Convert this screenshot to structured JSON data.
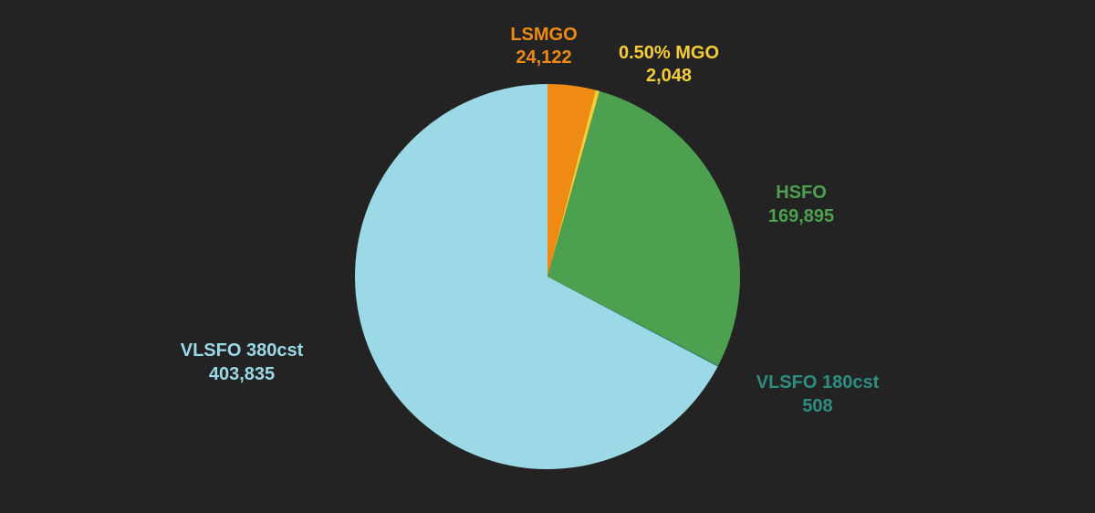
{
  "colors": {
    "background": "#232323"
  },
  "chart_data": {
    "type": "pie",
    "title": "",
    "start_angle_deg": 0,
    "direction": "clockwise",
    "slices": [
      {
        "label": "LSMGO",
        "value": 24122,
        "value_text": "24,122",
        "color": "#ef8b13"
      },
      {
        "label": "0.50% MGO",
        "value": 2048,
        "value_text": "2,048",
        "color": "#f6cd36"
      },
      {
        "label": "HSFO",
        "value": 169895,
        "value_text": "169,895",
        "color": "#4ea051"
      },
      {
        "label": "VLSFO 180cst",
        "value": 508,
        "value_text": "508",
        "color": "#2c8d80"
      },
      {
        "label": "VLSFO 380cst",
        "value": 403835,
        "value_text": "403,835",
        "color": "#9bd9e6"
      }
    ]
  }
}
